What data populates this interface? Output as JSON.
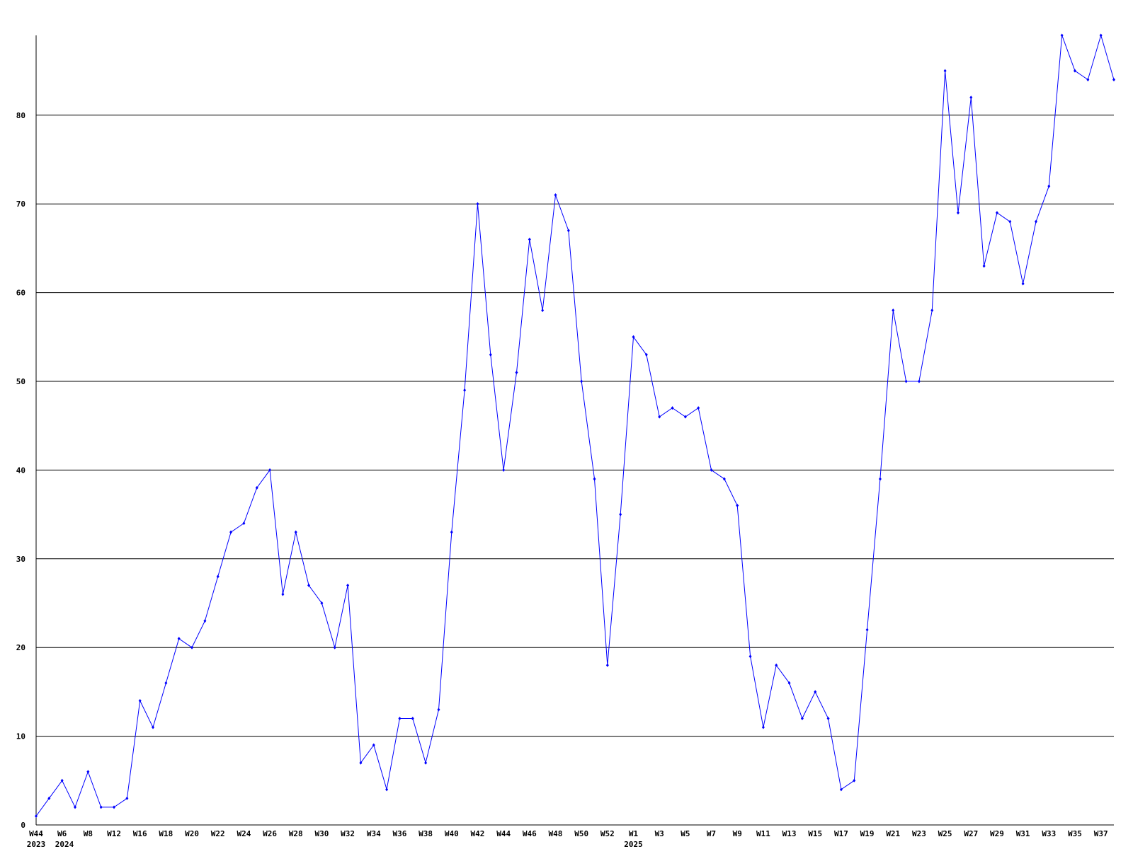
{
  "chart_data": {
    "type": "line",
    "title": "",
    "xlabel": "",
    "ylabel": "",
    "ylim": [
      0,
      89
    ],
    "yticks": [
      0,
      10,
      20,
      30,
      40,
      50,
      60,
      70,
      80
    ],
    "grid": "horizontal",
    "line_color": "#0000ff",
    "grid_color": "#000000",
    "x_ticks": [
      {
        "index": 0,
        "label": "W44"
      },
      {
        "index": 2,
        "label": "W6"
      },
      {
        "index": 4,
        "label": "W8"
      },
      {
        "index": 6,
        "label": "W12"
      },
      {
        "index": 8,
        "label": "W16"
      },
      {
        "index": 10,
        "label": "W18"
      },
      {
        "index": 12,
        "label": "W20"
      },
      {
        "index": 14,
        "label": "W22"
      },
      {
        "index": 16,
        "label": "W24"
      },
      {
        "index": 18,
        "label": "W26"
      },
      {
        "index": 20,
        "label": "W28"
      },
      {
        "index": 22,
        "label": "W30"
      },
      {
        "index": 24,
        "label": "W32"
      },
      {
        "index": 26,
        "label": "W34"
      },
      {
        "index": 28,
        "label": "W36"
      },
      {
        "index": 30,
        "label": "W38"
      },
      {
        "index": 32,
        "label": "W40"
      },
      {
        "index": 34,
        "label": "W42"
      },
      {
        "index": 36,
        "label": "W44"
      },
      {
        "index": 38,
        "label": "W46"
      },
      {
        "index": 40,
        "label": "W48"
      },
      {
        "index": 42,
        "label": "W50"
      },
      {
        "index": 44,
        "label": "W52"
      },
      {
        "index": 46,
        "label": "W1"
      },
      {
        "index": 48,
        "label": "W3"
      },
      {
        "index": 50,
        "label": "W5"
      },
      {
        "index": 52,
        "label": "W7"
      },
      {
        "index": 54,
        "label": "W9"
      },
      {
        "index": 56,
        "label": "W11"
      },
      {
        "index": 58,
        "label": "W13"
      },
      {
        "index": 60,
        "label": "W15"
      },
      {
        "index": 62,
        "label": "W17"
      },
      {
        "index": 64,
        "label": "W19"
      },
      {
        "index": 66,
        "label": "W21"
      },
      {
        "index": 68,
        "label": "W23"
      },
      {
        "index": 70,
        "label": "W25"
      },
      {
        "index": 72,
        "label": "W27"
      },
      {
        "index": 74,
        "label": "W29"
      },
      {
        "index": 76,
        "label": "W31"
      },
      {
        "index": 78,
        "label": "W33"
      },
      {
        "index": 80,
        "label": "W35"
      },
      {
        "index": 82,
        "label": "W37"
      }
    ],
    "year_labels": [
      {
        "index": 0,
        "label": "2023"
      },
      {
        "index": 1,
        "label": "2024"
      },
      {
        "index": 46,
        "label": "2025"
      }
    ],
    "series": [
      {
        "values": [
          1,
          3,
          5,
          2,
          6,
          2,
          2,
          3,
          14,
          11,
          16,
          21,
          20,
          23,
          28,
          33,
          34,
          38,
          40,
          26,
          33,
          27,
          25,
          20,
          27,
          7,
          9,
          4,
          12,
          12,
          7,
          13,
          33,
          49,
          70,
          53,
          40,
          51,
          66,
          58,
          71,
          67,
          50,
          39,
          18,
          35,
          55,
          53,
          46,
          47,
          46,
          47,
          40,
          39,
          36,
          19,
          11,
          18,
          16,
          12,
          15,
          12,
          4,
          5,
          22,
          39,
          58,
          50,
          50,
          58,
          85,
          69,
          82,
          63,
          69,
          68,
          61,
          68,
          72,
          89,
          85,
          84,
          89,
          84
        ]
      }
    ]
  }
}
